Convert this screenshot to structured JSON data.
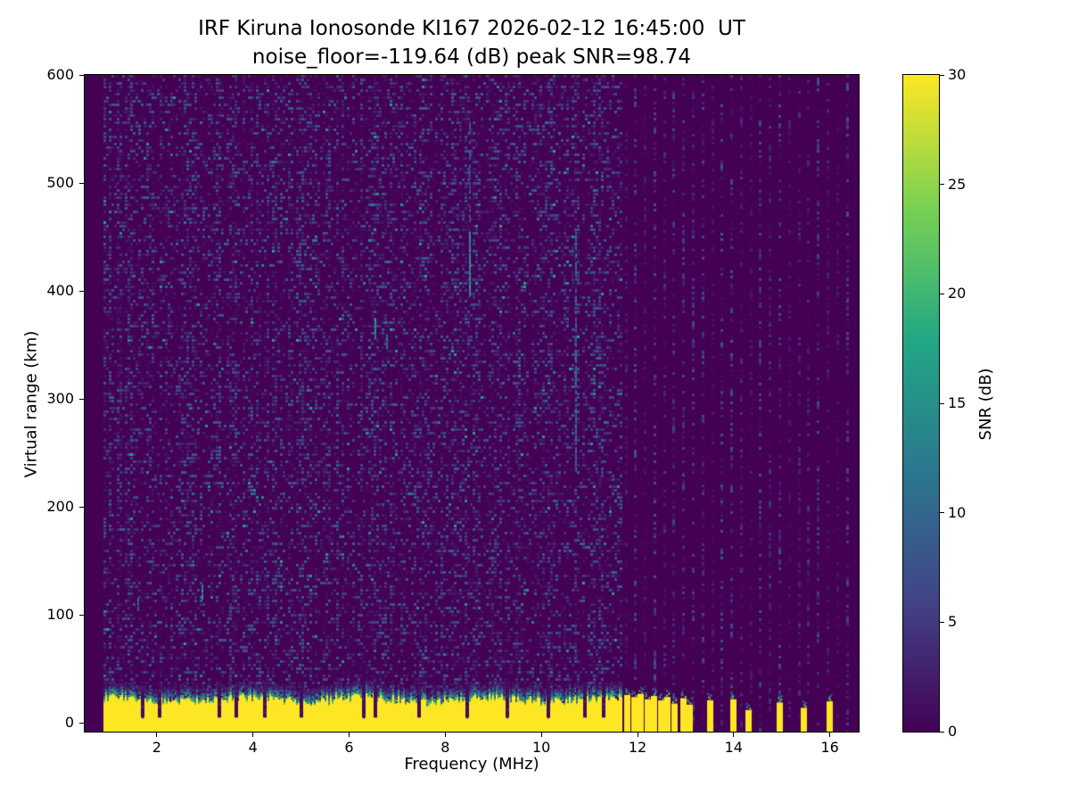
{
  "figure": {
    "title_line1": "IRF Kiruna Ionosonde KI167 2026-02-12 16:45:00  UT",
    "title_line2": "noise_floor=-119.64 (dB) peak SNR=98.74",
    "xlabel": "Frequency (MHz)",
    "ylabel": "Virtual range (km)",
    "colorbar_label": "SNR (dB)",
    "background_color": "#ffffff"
  },
  "chart_data": {
    "type": "heatmap",
    "title": "IRF Kiruna Ionosonde KI167 2026-02-12 16:45:00  UT",
    "subtitle": "noise_floor=-119.64 (dB) peak SNR=98.74",
    "station": "IRF Kiruna Ionosonde KI167",
    "timestamp_ut": "2026-02-12 16:45:00",
    "noise_floor_db": -119.64,
    "peak_snr_db": 98.74,
    "xlabel": "Frequency (MHz)",
    "ylabel": "Virtual range (km)",
    "x_range_mhz": [
      0.5,
      16.6
    ],
    "y_range_km": [
      -8,
      600
    ],
    "x_ticks": [
      2,
      4,
      6,
      8,
      10,
      12,
      14,
      16
    ],
    "y_ticks": [
      0,
      100,
      200,
      300,
      400,
      500,
      600
    ],
    "grid": false,
    "colorbar": {
      "label": "SNR (dB)",
      "min": 0,
      "max": 30,
      "ticks": [
        0,
        5,
        10,
        15,
        20,
        25,
        30
      ],
      "colormap": "viridis",
      "position": "right"
    },
    "colormap_stops": [
      [
        0.0,
        68,
        1,
        84
      ],
      [
        0.2,
        65,
        68,
        135
      ],
      [
        0.4,
        42,
        120,
        142
      ],
      [
        0.6,
        34,
        168,
        132
      ],
      [
        0.8,
        122,
        209,
        81
      ],
      [
        1.0,
        253,
        231,
        37
      ]
    ],
    "sweep": {
      "start_mhz": 0.9,
      "continuous_until_mhz": 11.68,
      "stepped_until_mhz": 16.5,
      "step_mhz": 0.2
    },
    "ground_band": {
      "top_km_mean": 24,
      "top_km_jitter": 8,
      "snr_db": 30,
      "notch_freqs_mhz": [
        1.7,
        2.05,
        3.3,
        3.65,
        4.25,
        5.0,
        6.3,
        6.55,
        7.45,
        8.45,
        9.3,
        10.15,
        10.9,
        11.3
      ]
    },
    "stepped_bars": [
      {
        "f": 11.78,
        "h": 26
      },
      {
        "f": 11.92,
        "h": 24
      },
      {
        "f": 12.06,
        "h": 27
      },
      {
        "f": 12.2,
        "h": 22
      },
      {
        "f": 12.34,
        "h": 25
      },
      {
        "f": 12.48,
        "h": 21
      },
      {
        "f": 12.62,
        "h": 24
      },
      {
        "f": 12.76,
        "h": 18
      },
      {
        "f": 12.95,
        "h": 23
      },
      {
        "f": 13.08,
        "h": 17
      },
      {
        "f": 13.5,
        "h": 21
      },
      {
        "f": 13.98,
        "h": 22
      },
      {
        "f": 14.3,
        "h": 12
      },
      {
        "f": 14.95,
        "h": 19
      },
      {
        "f": 15.45,
        "h": 14
      },
      {
        "f": 15.98,
        "h": 20
      }
    ],
    "echo_streaks": [
      {
        "f_mhz": 8.52,
        "range_km": [
          395,
          455
        ],
        "snr_db": 15,
        "density": 0.9
      },
      {
        "f_mhz": 8.52,
        "range_km": [
          455,
          565
        ],
        "snr_db": 8,
        "density": 0.55
      },
      {
        "f_mhz": 10.72,
        "range_km": [
          235,
          455
        ],
        "snr_db": 10,
        "density": 0.65
      },
      {
        "f_mhz": 6.55,
        "range_km": [
          356,
          374
        ],
        "snr_db": 15,
        "density": 0.9
      },
      {
        "f_mhz": 6.78,
        "range_km": [
          348,
          360
        ],
        "snr_db": 12,
        "density": 0.8
      },
      {
        "f_mhz": 2.95,
        "range_km": [
          116,
          128
        ],
        "snr_db": 15,
        "density": 0.9
      },
      {
        "f_mhz": 1.62,
        "range_km": [
          106,
          116
        ],
        "snr_db": 10,
        "density": 0.8
      }
    ],
    "noise": {
      "seed": 1167,
      "speckle_value_max_db": 9,
      "bright_speckle_db": 15,
      "column_density_min": 0.25,
      "column_density_span": 0.55,
      "stepped_column_density": 0.45
    }
  }
}
